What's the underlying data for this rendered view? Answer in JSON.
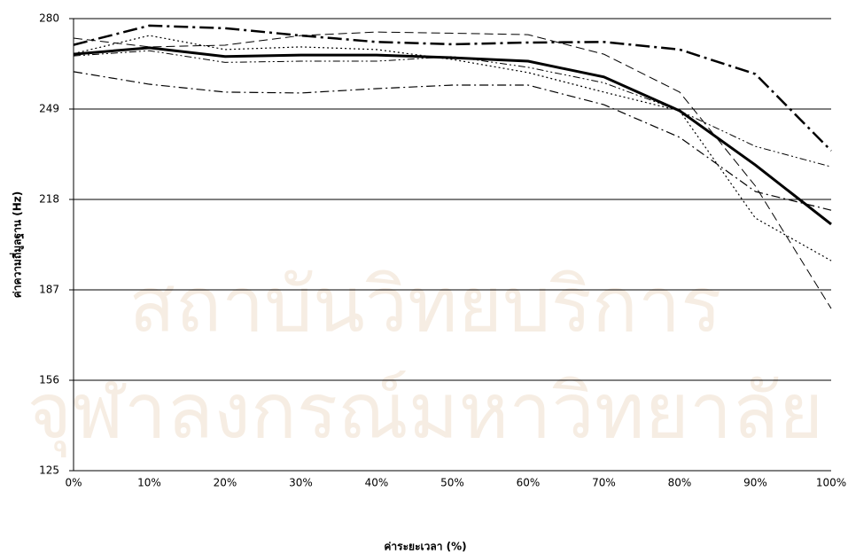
{
  "chart_data": {
    "type": "line",
    "watermark": [
      "สถาบันวิทยบริการ",
      "จุฬาลงกรณ์มหาวิทยาลัย"
    ],
    "x_label": "ค่าระยะเวลา (%)",
    "y_label": "ค่าความถี่มูลฐาน (Hz)",
    "categories": [
      "0%",
      "10%",
      "20%",
      "30%",
      "40%",
      "50%",
      "60%",
      "70%",
      "80%",
      "90%",
      "100%"
    ],
    "ylim": [
      125,
      280
    ],
    "yticks": [
      125,
      156,
      187,
      218,
      249,
      280
    ],
    "grid": true,
    "series": [
      {
        "color": "#000000",
        "style": "solid-thick",
        "values": [
          267.8,
          270,
          267,
          267.5,
          267.5,
          266.6,
          265.4,
          260,
          248.4,
          229.8,
          209.5
        ]
      },
      {
        "color": "#000000",
        "style": "dashdot-thick",
        "values": [
          271,
          277.6,
          276.7,
          274.2,
          272,
          271.2,
          271.8,
          272,
          269.4,
          261,
          234.7
        ]
      },
      {
        "color": "#000000",
        "style": "dashdot",
        "values": [
          261.8,
          257.5,
          254.8,
          254.5,
          256,
          257.2,
          257.2,
          250.5,
          239.3,
          220.7,
          214.3
        ]
      },
      {
        "color": "#000000",
        "style": "dashed",
        "values": [
          273.3,
          270.3,
          270.9,
          274.2,
          275.4,
          275,
          274.5,
          267.8,
          254.8,
          222.6,
          180.6
        ]
      },
      {
        "color": "#000000",
        "style": "dotted",
        "values": [
          268,
          274.2,
          269.4,
          270.3,
          269.4,
          266,
          261.5,
          254.8,
          248.4,
          211.6,
          197
        ]
      },
      {
        "color": "#000000",
        "style": "dashdotdot",
        "values": [
          267.2,
          269,
          265,
          265.4,
          265.4,
          267,
          263.3,
          258,
          248.4,
          236.2,
          229.2
        ]
      }
    ]
  }
}
